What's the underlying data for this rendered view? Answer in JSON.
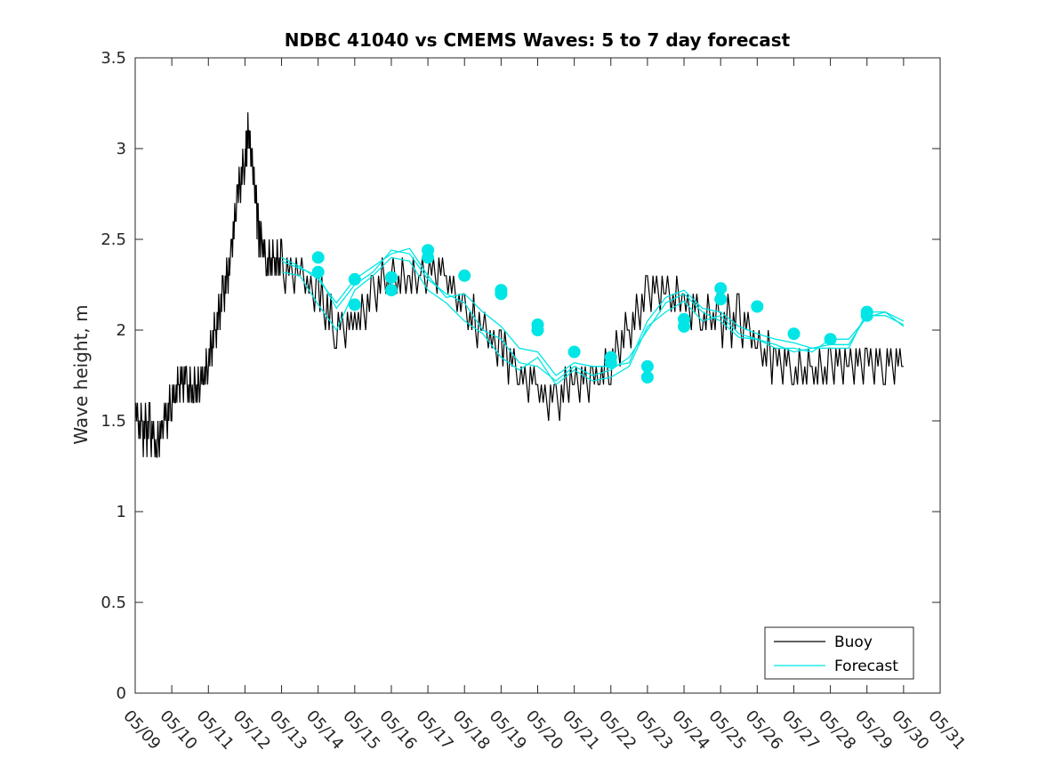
{
  "chart_data": {
    "type": "line",
    "title": "NDBC 41040 vs CMEMS Waves: 5 to 7 day forecast",
    "xlabel": "",
    "ylabel": "Wave height, m",
    "x_range": [
      "05/09",
      "05/31"
    ],
    "ylim": [
      0,
      3.5
    ],
    "yticks": [
      "0",
      "0.5",
      "1",
      "1.5",
      "2",
      "2.5",
      "3",
      "3.5"
    ],
    "xticks": [
      "05/09",
      "05/10",
      "05/11",
      "05/12",
      "05/13",
      "05/14",
      "05/15",
      "05/16",
      "05/17",
      "05/18",
      "05/19",
      "05/20",
      "05/21",
      "05/22",
      "05/23",
      "05/24",
      "05/25",
      "05/26",
      "05/27",
      "05/28",
      "05/29",
      "05/30",
      "05/31"
    ],
    "grid": false,
    "legend_placement": "bottom-right",
    "colors": {
      "buoy": "#000000",
      "forecast": "#00e5e5",
      "axis": "#262626"
    },
    "series": [
      {
        "name": "Buoy",
        "style": "line",
        "x": [
          0,
          0.2,
          0.4,
          0.6,
          0.8,
          1.0,
          1.2,
          1.4,
          1.6,
          1.8,
          2.0,
          2.2,
          2.4,
          2.6,
          2.8,
          3.0,
          3.1,
          3.2,
          3.3,
          3.4,
          3.6,
          3.8,
          4.0,
          4.5,
          5.0,
          5.5,
          6.0,
          6.5,
          7.0,
          7.5,
          8.0,
          8.5,
          9.0,
          9.5,
          10.0,
          10.5,
          11.0,
          11.5,
          12.0,
          12.5,
          13.0,
          13.5,
          14.0,
          14.5,
          15.0,
          15.5,
          16.0,
          16.5,
          17.0,
          17.5,
          18.0,
          18.5,
          19.0,
          19.5,
          20.0,
          20.5,
          21.0
        ],
        "y": [
          1.55,
          1.45,
          1.45,
          1.35,
          1.5,
          1.6,
          1.72,
          1.7,
          1.68,
          1.7,
          1.85,
          2.0,
          2.2,
          2.4,
          2.75,
          2.95,
          3.1,
          2.9,
          2.7,
          2.5,
          2.38,
          2.38,
          2.35,
          2.3,
          2.2,
          2.0,
          2.05,
          2.2,
          2.3,
          2.25,
          2.35,
          2.3,
          2.1,
          2.0,
          1.9,
          1.75,
          1.68,
          1.6,
          1.75,
          1.72,
          1.8,
          2.0,
          2.2,
          2.2,
          2.15,
          2.1,
          2.05,
          2.05,
          1.95,
          1.82,
          1.8,
          1.78,
          1.8,
          1.8,
          1.8,
          1.8,
          1.8
        ]
      },
      {
        "name": "Forecast",
        "style": "line",
        "members": [
          {
            "x": [
              4.0,
              4.5,
              5.0,
              5.5,
              6.0,
              6.5,
              7.0,
              7.5,
              8.0,
              8.5,
              9.0,
              9.5,
              10.0,
              10.5,
              11.0,
              11.5,
              12.0,
              12.5,
              13.0,
              13.5,
              14.0,
              14.5,
              15.0,
              15.5,
              16.0,
              16.5,
              17.0,
              17.5,
              18.0,
              18.5,
              19.0,
              19.5,
              20.0,
              20.5,
              21.0
            ],
            "y": [
              2.4,
              2.35,
              2.28,
              2.15,
              2.28,
              2.35,
              2.42,
              2.45,
              2.3,
              2.18,
              2.2,
              2.1,
              2.02,
              1.9,
              1.88,
              1.75,
              1.82,
              1.8,
              1.8,
              1.82,
              2.05,
              2.18,
              2.22,
              2.12,
              2.1,
              2.02,
              1.98,
              1.95,
              1.93,
              1.9,
              1.9,
              1.9,
              2.1,
              2.1,
              2.05
            ]
          },
          {
            "x": [
              4.0,
              4.5,
              5.0,
              5.5,
              6.0,
              6.5,
              7.0,
              7.5,
              8.0,
              8.5,
              9.0,
              9.5,
              10.0,
              10.5,
              11.0,
              11.5,
              12.0,
              12.5,
              13.0,
              13.5,
              14.0,
              14.5,
              15.0,
              15.5,
              16.0,
              16.5,
              17.0,
              17.5,
              18.0,
              18.5,
              19.0,
              19.5,
              20.0,
              20.5,
              21.0
            ],
            "y": [
              2.32,
              2.3,
              2.14,
              2.0,
              2.22,
              2.3,
              2.4,
              2.38,
              2.22,
              2.15,
              2.05,
              1.98,
              1.85,
              1.78,
              1.85,
              1.7,
              1.78,
              1.72,
              1.74,
              1.8,
              2.02,
              2.1,
              2.16,
              2.05,
              2.08,
              1.98,
              1.95,
              1.9,
              1.9,
              1.88,
              1.95,
              1.95,
              2.07,
              2.1,
              2.02
            ]
          },
          {
            "x": [
              4.0,
              4.5,
              5.0,
              5.5,
              6.0,
              6.5,
              7.0,
              7.5,
              8.0,
              8.5,
              9.0,
              9.5,
              10.0,
              10.5,
              11.0,
              11.5,
              12.0,
              12.5,
              13.0,
              13.5,
              14.0,
              14.5,
              15.0,
              15.5,
              16.0,
              16.5,
              17.0,
              17.5,
              18.0,
              18.5,
              19.0,
              19.5,
              20.0,
              20.5,
              21.0
            ],
            "y": [
              2.38,
              2.34,
              2.3,
              2.12,
              2.25,
              2.32,
              2.44,
              2.42,
              2.28,
              2.2,
              2.15,
              2.0,
              1.95,
              1.82,
              1.8,
              1.72,
              1.8,
              1.75,
              1.78,
              1.85,
              2.0,
              2.15,
              2.2,
              2.1,
              2.05,
              1.96,
              1.95,
              1.92,
              1.88,
              1.9,
              1.92,
              1.92,
              2.08,
              2.08,
              2.03
            ]
          }
        ]
      }
    ],
    "forecast_markers": {
      "x": [
        5.0,
        5.0,
        6.0,
        6.0,
        7.0,
        7.0,
        8.0,
        8.0,
        9.0,
        10.0,
        10.0,
        11.0,
        11.0,
        12.0,
        13.0,
        13.0,
        14.0,
        14.0,
        15.0,
        15.0,
        16.0,
        16.0,
        17.0,
        18.0,
        19.0,
        20.0,
        20.0
      ],
      "y": [
        2.4,
        2.32,
        2.28,
        2.14,
        2.29,
        2.22,
        2.44,
        2.4,
        2.3,
        2.22,
        2.2,
        2.03,
        2.0,
        1.88,
        1.85,
        1.82,
        1.8,
        1.74,
        2.06,
        2.02,
        2.23,
        2.17,
        2.13,
        1.98,
        1.95,
        2.1,
        2.08
      ]
    },
    "legend": [
      {
        "label": "Buoy",
        "color": "#000000"
      },
      {
        "label": "Forecast",
        "color": "#00e5e5"
      }
    ]
  }
}
